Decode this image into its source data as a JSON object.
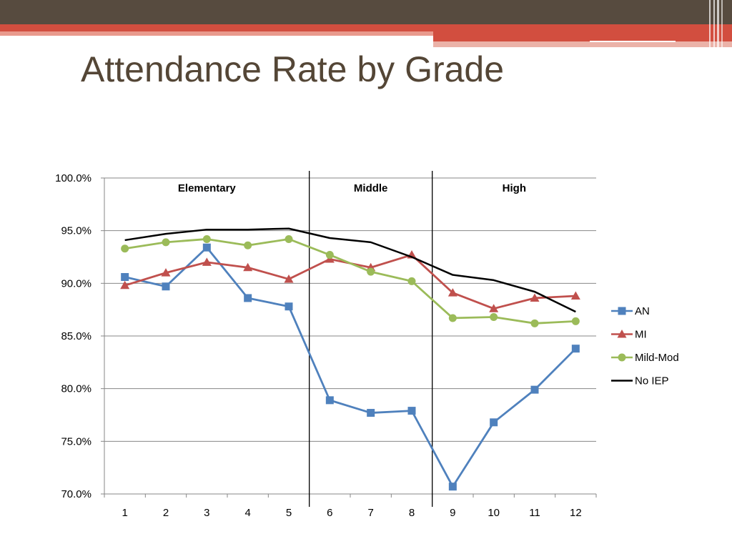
{
  "slide": {
    "title": "Attendance Rate by Grade"
  },
  "theme": {
    "band_dark": "#574b3f",
    "band_red": "#d24e3f",
    "title_color": "#544636"
  },
  "chart_data": {
    "type": "line",
    "title": "",
    "xlabel": "",
    "ylabel": "",
    "categories": [
      "1",
      "2",
      "3",
      "4",
      "5",
      "6",
      "7",
      "8",
      "9",
      "10",
      "11",
      "12"
    ],
    "ylim": [
      70,
      100
    ],
    "yticks": [
      "70.0%",
      "75.0%",
      "80.0%",
      "85.0%",
      "90.0%",
      "95.0%",
      "100.0%"
    ],
    "grid": true,
    "legend_position": "right",
    "sections": [
      {
        "label": "Elementary",
        "grades": [
          "1",
          "5"
        ]
      },
      {
        "label": "Middle",
        "grades": [
          "6",
          "8"
        ]
      },
      {
        "label": "High",
        "grades": [
          "9",
          "12"
        ]
      }
    ],
    "series": [
      {
        "name": "AN",
        "color": "#4f81bd",
        "marker": "square",
        "values": [
          90.6,
          89.7,
          93.4,
          88.6,
          87.8,
          78.9,
          77.7,
          77.9,
          70.7,
          76.8,
          79.9,
          83.8
        ]
      },
      {
        "name": "MI",
        "color": "#c0504d",
        "marker": "triangle",
        "values": [
          89.8,
          91.0,
          92.0,
          91.5,
          90.4,
          92.3,
          91.5,
          92.7,
          89.1,
          87.6,
          88.6,
          88.8
        ]
      },
      {
        "name": "Mild-Mod",
        "color": "#9bbb59",
        "marker": "circle",
        "values": [
          93.3,
          93.9,
          94.2,
          93.6,
          94.2,
          92.7,
          91.1,
          90.2,
          86.7,
          86.8,
          86.2,
          86.4
        ]
      },
      {
        "name": "No IEP",
        "color": "#000000",
        "marker": "none",
        "values": [
          94.1,
          94.7,
          95.1,
          95.1,
          95.2,
          94.3,
          93.9,
          92.5,
          90.8,
          90.3,
          89.2,
          87.3
        ]
      }
    ]
  }
}
